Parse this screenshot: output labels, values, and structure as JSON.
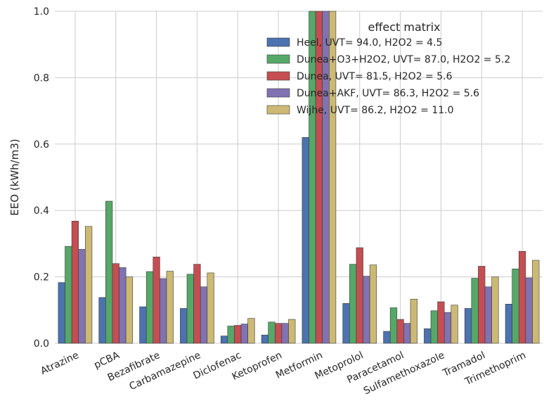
{
  "chart_data": {
    "type": "bar",
    "title": "",
    "xlabel": "",
    "ylabel": "EEO (kWh/m3)",
    "ylim": [
      0,
      1.0
    ],
    "yticks": [
      "0.0",
      "0.2",
      "0.4",
      "0.6",
      "0.8",
      "1.0"
    ],
    "grid": true,
    "legend": {
      "title": "effect matrix",
      "placement": "top-right"
    },
    "categories": [
      "Atrazine",
      "pCBA",
      "Bezafibrate",
      "Carbamazepine",
      "Diclofenac",
      "Ketoprofen",
      "Metformin",
      "Metoprolol",
      "Paracetamol",
      "Sulfamethoxazole",
      "Tramadol",
      "Trimethoprim"
    ],
    "series": [
      {
        "name": "Heel, UVT= 94.0, H2O2 = 4.5",
        "color": "#4c72b0",
        "values": [
          0.183,
          0.138,
          0.11,
          0.105,
          0.022,
          0.025,
          0.62,
          0.12,
          0.036,
          0.044,
          0.105,
          0.118
        ]
      },
      {
        "name": "Dunea+O3+H2O2, UVT= 87.0, H2O2 = 5.2",
        "color": "#55a868",
        "values": [
          0.292,
          0.428,
          0.216,
          0.208,
          0.052,
          0.064,
          1.0,
          0.238,
          0.107,
          0.098,
          0.196,
          0.224
        ]
      },
      {
        "name": "Dunea, UVT= 81.5, H2O2 = 5.6",
        "color": "#c44e52",
        "values": [
          0.368,
          0.24,
          0.26,
          0.238,
          0.054,
          0.06,
          1.0,
          0.288,
          0.072,
          0.125,
          0.232,
          0.277
        ]
      },
      {
        "name": "Dunea+AKF, UVT= 86.3, H2O2 = 5.6",
        "color": "#8172b2",
        "values": [
          0.283,
          0.228,
          0.195,
          0.17,
          0.058,
          0.06,
          1.0,
          0.202,
          0.06,
          0.093,
          0.17,
          0.197
        ]
      },
      {
        "name": "Wijhe, UVT= 86.2, H2O2 = 11.0",
        "color": "#ccb974",
        "values": [
          0.352,
          0.2,
          0.217,
          0.212,
          0.075,
          0.072,
          1.0,
          0.236,
          0.133,
          0.115,
          0.2,
          0.25
        ]
      }
    ]
  }
}
